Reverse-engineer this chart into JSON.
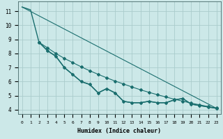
{
  "xlabel": "Humidex (Indice chaleur)",
  "background_color": "#cce8e8",
  "grid_color": "#aacccc",
  "line_color": "#1a6e6e",
  "xlim": [
    -0.5,
    23.5
  ],
  "ylim": [
    3.7,
    11.7
  ],
  "yticks": [
    4,
    5,
    6,
    7,
    8,
    9,
    10,
    11
  ],
  "xticks": [
    0,
    1,
    2,
    3,
    4,
    5,
    6,
    7,
    8,
    9,
    10,
    11,
    12,
    13,
    14,
    15,
    16,
    17,
    18,
    19,
    20,
    21,
    22,
    23
  ],
  "line1_x": [
    0,
    1,
    2,
    3,
    4,
    5,
    6,
    7,
    8,
    9,
    10,
    11,
    12,
    13,
    14,
    15,
    16,
    17,
    18,
    19,
    20,
    21,
    22,
    23
  ],
  "line1_y": [
    11.3,
    11.1,
    8.8,
    8.2,
    7.8,
    7.0,
    6.5,
    6.0,
    5.8,
    5.2,
    5.5,
    5.2,
    4.6,
    4.5,
    4.5,
    4.6,
    4.5,
    4.5,
    4.7,
    4.8,
    4.4,
    4.3,
    4.2,
    4.1
  ],
  "line2_x": [
    2,
    3,
    4,
    5,
    6,
    7,
    8,
    9,
    10,
    11,
    12,
    13,
    14,
    15,
    16,
    17,
    18,
    19,
    20,
    21,
    22,
    23
  ],
  "line2_y": [
    8.8,
    8.2,
    7.8,
    7.0,
    6.5,
    6.0,
    5.8,
    5.2,
    5.5,
    5.2,
    4.6,
    4.5,
    4.5,
    4.6,
    4.5,
    4.5,
    4.7,
    4.8,
    4.4,
    4.3,
    4.2,
    4.1
  ],
  "line3_x": [
    0,
    23
  ],
  "line3_y": [
    11.3,
    4.1
  ],
  "line4_x": [
    2,
    3,
    4,
    5,
    6,
    7,
    8,
    9,
    10,
    11,
    12,
    13,
    14,
    15,
    16,
    17,
    18,
    19,
    20,
    21,
    22,
    23
  ],
  "line4_y": [
    8.8,
    8.4,
    8.0,
    7.65,
    7.35,
    7.05,
    6.77,
    6.52,
    6.27,
    6.04,
    5.83,
    5.62,
    5.42,
    5.24,
    5.07,
    4.91,
    4.75,
    4.61,
    4.47,
    4.35,
    4.23,
    4.12
  ]
}
